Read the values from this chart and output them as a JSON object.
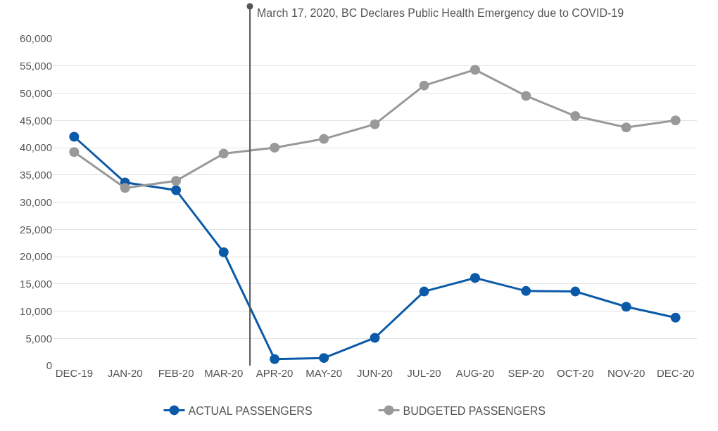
{
  "chart_data": {
    "type": "line",
    "x": [
      "2019-12",
      "2020-01",
      "2020-02",
      "2020-03",
      "2020-04",
      "2020-05",
      "2020-06",
      "2020-07",
      "2020-08",
      "2020-09",
      "2020-10",
      "2020-11",
      "2020-12"
    ],
    "series": [
      {
        "name": "ACTUAL PASSENGERS",
        "color": "#0b5aa8",
        "values": [
          42000,
          33600,
          32200,
          20800,
          1200,
          1400,
          5100,
          13600,
          16100,
          13700,
          13600,
          10800,
          8800
        ]
      },
      {
        "name": "BUDGETED PASSENGERS",
        "color": "#999999",
        "values": [
          39200,
          32600,
          33900,
          38900,
          40000,
          41600,
          44300,
          51400,
          54300,
          49500,
          45800,
          43700,
          45000
        ]
      }
    ],
    "xlim": [
      "2019-11-18",
      "2020-12-14"
    ],
    "xticks": [
      {
        "value": "2019-12",
        "label": "DEC-19"
      },
      {
        "value": "2020-01",
        "label": "JAN-20"
      },
      {
        "value": "2020-02",
        "label": "FEB-20"
      },
      {
        "value": "2020-03",
        "label": "MAR-20"
      },
      {
        "value": "2020-04",
        "label": "APR-20"
      },
      {
        "value": "2020-05",
        "label": "MAY-20"
      },
      {
        "value": "2020-06",
        "label": "JUN-20"
      },
      {
        "value": "2020-07",
        "label": "JUL-20"
      },
      {
        "value": "2020-08",
        "label": "AUG-20"
      },
      {
        "value": "2020-09",
        "label": "SEP-20"
      },
      {
        "value": "2020-10",
        "label": "OCT-20"
      },
      {
        "value": "2020-11",
        "label": "NOV-20"
      },
      {
        "value": "2020-12",
        "label": "DEC-20"
      }
    ],
    "ylim": [
      0,
      60000
    ],
    "yticks": [
      {
        "value": 0,
        "label": "0"
      },
      {
        "value": 5000,
        "label": "5,000"
      },
      {
        "value": 10000,
        "label": "10,000"
      },
      {
        "value": 15000,
        "label": "15,000"
      },
      {
        "value": 20000,
        "label": "20,000"
      },
      {
        "value": 25000,
        "label": "25,000"
      },
      {
        "value": 30000,
        "label": "30,000"
      },
      {
        "value": 35000,
        "label": "35,000"
      },
      {
        "value": 40000,
        "label": "40,000"
      },
      {
        "value": 45000,
        "label": "45,000"
      },
      {
        "value": 50000,
        "label": "50,000"
      },
      {
        "value": 55000,
        "label": "55,000"
      },
      {
        "value": 60000,
        "label": "60,000"
      }
    ],
    "ref_lines": [
      {
        "axis": "x",
        "value": "2020-03-17",
        "label": "March 17, 2020, BC Declares Public Health Emergency due to COVID-19",
        "color": "#555555"
      }
    ],
    "grid": "y",
    "legend": "bottom",
    "marker": "circle",
    "line_style": "solid"
  }
}
